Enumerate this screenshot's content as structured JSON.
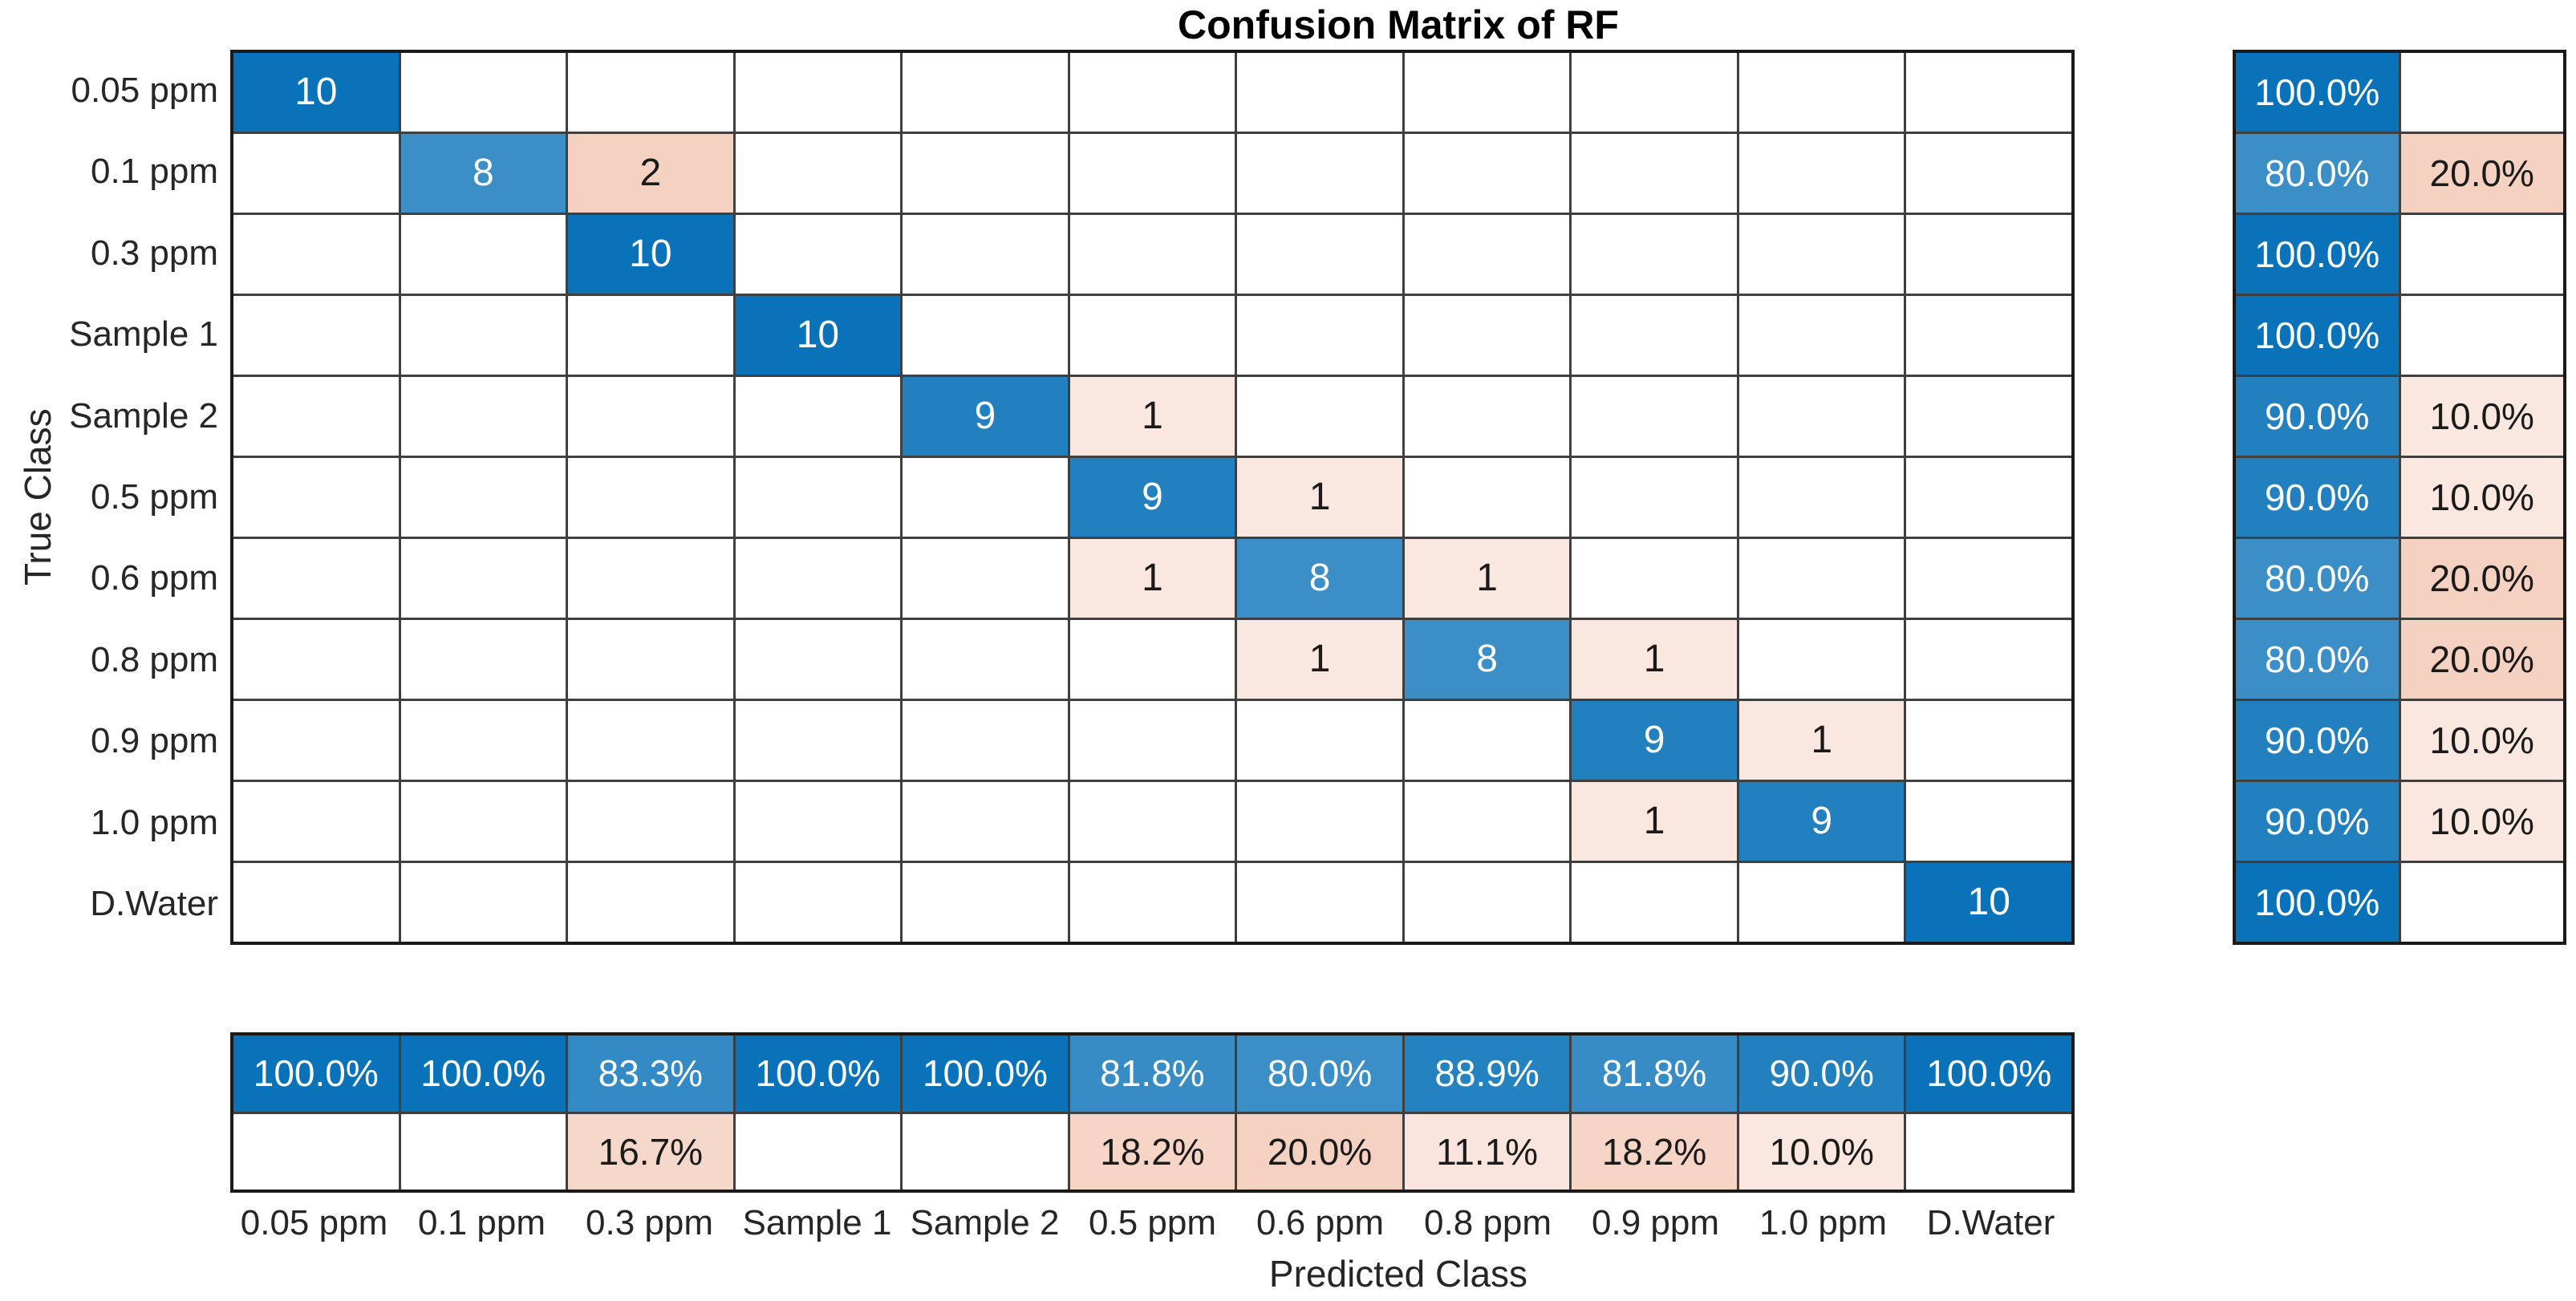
{
  "chart_data": {
    "type": "heatmap",
    "subtype": "confusion-matrix",
    "title": "Confusion Matrix of RF",
    "xlabel": "Predicted Class",
    "ylabel": "True Class",
    "classes": [
      "0.05 ppm",
      "0.1 ppm",
      "0.3 ppm",
      "Sample 1",
      "Sample 2",
      "0.5 ppm",
      "0.6 ppm",
      "0.8 ppm",
      "0.9 ppm",
      "1.0 ppm",
      "D.Water"
    ],
    "matrix": [
      [
        10,
        0,
        0,
        0,
        0,
        0,
        0,
        0,
        0,
        0,
        0
      ],
      [
        0,
        8,
        2,
        0,
        0,
        0,
        0,
        0,
        0,
        0,
        0
      ],
      [
        0,
        0,
        10,
        0,
        0,
        0,
        0,
        0,
        0,
        0,
        0
      ],
      [
        0,
        0,
        0,
        10,
        0,
        0,
        0,
        0,
        0,
        0,
        0
      ],
      [
        0,
        0,
        0,
        0,
        9,
        1,
        0,
        0,
        0,
        0,
        0
      ],
      [
        0,
        0,
        0,
        0,
        0,
        9,
        1,
        0,
        0,
        0,
        0
      ],
      [
        0,
        0,
        0,
        0,
        0,
        1,
        8,
        1,
        0,
        0,
        0
      ],
      [
        0,
        0,
        0,
        0,
        0,
        0,
        1,
        8,
        1,
        0,
        0
      ],
      [
        0,
        0,
        0,
        0,
        0,
        0,
        0,
        0,
        9,
        1,
        0
      ],
      [
        0,
        0,
        0,
        0,
        0,
        0,
        0,
        0,
        1,
        9,
        0
      ],
      [
        0,
        0,
        0,
        0,
        0,
        0,
        0,
        0,
        0,
        0,
        10
      ]
    ],
    "row_summary_pct": [
      [
        100,
        null
      ],
      [
        80,
        20
      ],
      [
        100,
        null
      ],
      [
        100,
        null
      ],
      [
        90,
        10
      ],
      [
        90,
        10
      ],
      [
        80,
        20
      ],
      [
        80,
        20
      ],
      [
        90,
        10
      ],
      [
        90,
        10
      ],
      [
        100,
        null
      ]
    ],
    "col_summary_pct": [
      [
        100,
        null
      ],
      [
        100,
        null
      ],
      [
        83.3,
        16.7
      ],
      [
        100,
        null
      ],
      [
        100,
        null
      ],
      [
        81.8,
        18.2
      ],
      [
        80,
        20
      ],
      [
        88.9,
        11.1
      ],
      [
        81.8,
        18.2
      ],
      [
        90,
        10
      ],
      [
        100,
        null
      ]
    ],
    "grid": true,
    "legend": "none"
  },
  "colors": {
    "diagonal_base": "#0A72B8",
    "offdiagonal_base": "#D95319",
    "empty_cell": "#FFFFFF",
    "grid_line": "#3F3F3F",
    "outer_border": "#1A1A1A",
    "text_on_blue": "#FFFFFF",
    "text_on_pink": "#1A1A1A",
    "tick_text": "#262626",
    "title_text": "#000000"
  }
}
